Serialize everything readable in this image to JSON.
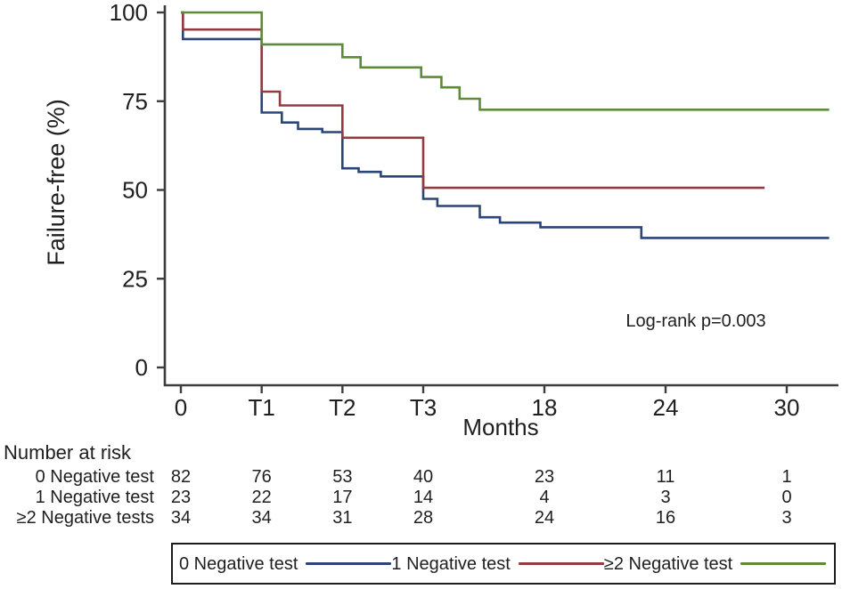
{
  "figure": {
    "background": "#ffffff",
    "axis_color": "#3d3d3d",
    "text_color": "#1f1f1f"
  },
  "chart_data": {
    "type": "line",
    "subtype": "kaplan-meier-step",
    "title": "",
    "xlabel": "Months",
    "ylabel": "Failure-free (%)",
    "xlim": [
      -0.5,
      32.5
    ],
    "ylim": [
      0,
      103
    ],
    "grid": false,
    "legend_position": "bottom",
    "x_ticks": [
      {
        "value": 0,
        "label": "0"
      },
      {
        "value": 4,
        "label": "T1"
      },
      {
        "value": 8,
        "label": "T2"
      },
      {
        "value": 12,
        "label": "T3"
      },
      {
        "value": 18,
        "label": "18"
      },
      {
        "value": 24,
        "label": "24"
      },
      {
        "value": 30,
        "label": "30"
      }
    ],
    "y_ticks": [
      {
        "value": 0,
        "label": "0"
      },
      {
        "value": 25,
        "label": "25"
      },
      {
        "value": 50,
        "label": "50"
      },
      {
        "value": 75,
        "label": "75"
      },
      {
        "value": 100,
        "label": "100"
      }
    ],
    "annotation": {
      "text": "Log-rank p=0.003",
      "x": 25.5,
      "y": 11.5
    },
    "series": [
      {
        "name": "0 Negative test",
        "color": "#2b4577",
        "end_month": 32.1,
        "steps": [
          [
            0,
            100
          ],
          [
            0.1,
            92.5
          ],
          [
            4,
            71.8
          ],
          [
            5,
            69.0
          ],
          [
            5.8,
            67.2
          ],
          [
            7,
            66.3
          ],
          [
            8,
            56.1
          ],
          [
            8.8,
            55.1
          ],
          [
            9.9,
            53.8
          ],
          [
            12,
            47.5
          ],
          [
            12.7,
            45.5
          ],
          [
            14.8,
            42.3
          ],
          [
            15.8,
            40.8
          ],
          [
            17.8,
            39.5
          ],
          [
            22.8,
            36.5
          ]
        ]
      },
      {
        "name": "1 Negative test",
        "color": "#943b42",
        "end_month": 28.9,
        "steps": [
          [
            0,
            100
          ],
          [
            0.1,
            95.2
          ],
          [
            4,
            77.7
          ],
          [
            4.9,
            73.8
          ],
          [
            8,
            64.7
          ],
          [
            12,
            50.6
          ]
        ]
      },
      {
        "name": "≥2 Negative test",
        "color": "#5e8a3a",
        "end_month": 32.1,
        "steps": [
          [
            0,
            100
          ],
          [
            4,
            91.0
          ],
          [
            8,
            87.4
          ],
          [
            8.9,
            84.5
          ],
          [
            11.9,
            81.8
          ],
          [
            12.9,
            78.9
          ],
          [
            13.8,
            75.7
          ],
          [
            14.8,
            72.6
          ]
        ]
      }
    ]
  },
  "at_risk": {
    "title": "Number at risk",
    "columns_months": [
      0,
      4,
      8,
      12,
      18,
      24,
      30
    ],
    "rows": [
      {
        "label": "0 Negative test",
        "values": [
          "82",
          "76",
          "53",
          "40",
          "23",
          "11",
          "1"
        ]
      },
      {
        "label": "1 Negative test",
        "values": [
          "23",
          "22",
          "17",
          "14",
          "4",
          "3",
          "0"
        ]
      },
      {
        "label": "≥2 Negative tests",
        "values": [
          "34",
          "34",
          "31",
          "28",
          "24",
          "16",
          "3"
        ]
      }
    ]
  },
  "legend": {
    "items": [
      {
        "label": "0 Negative test",
        "color": "#2b4577"
      },
      {
        "label": "1 Negative test",
        "color": "#943b42"
      },
      {
        "label": "≥2 Negative test",
        "color": "#5e8a3a"
      }
    ]
  }
}
